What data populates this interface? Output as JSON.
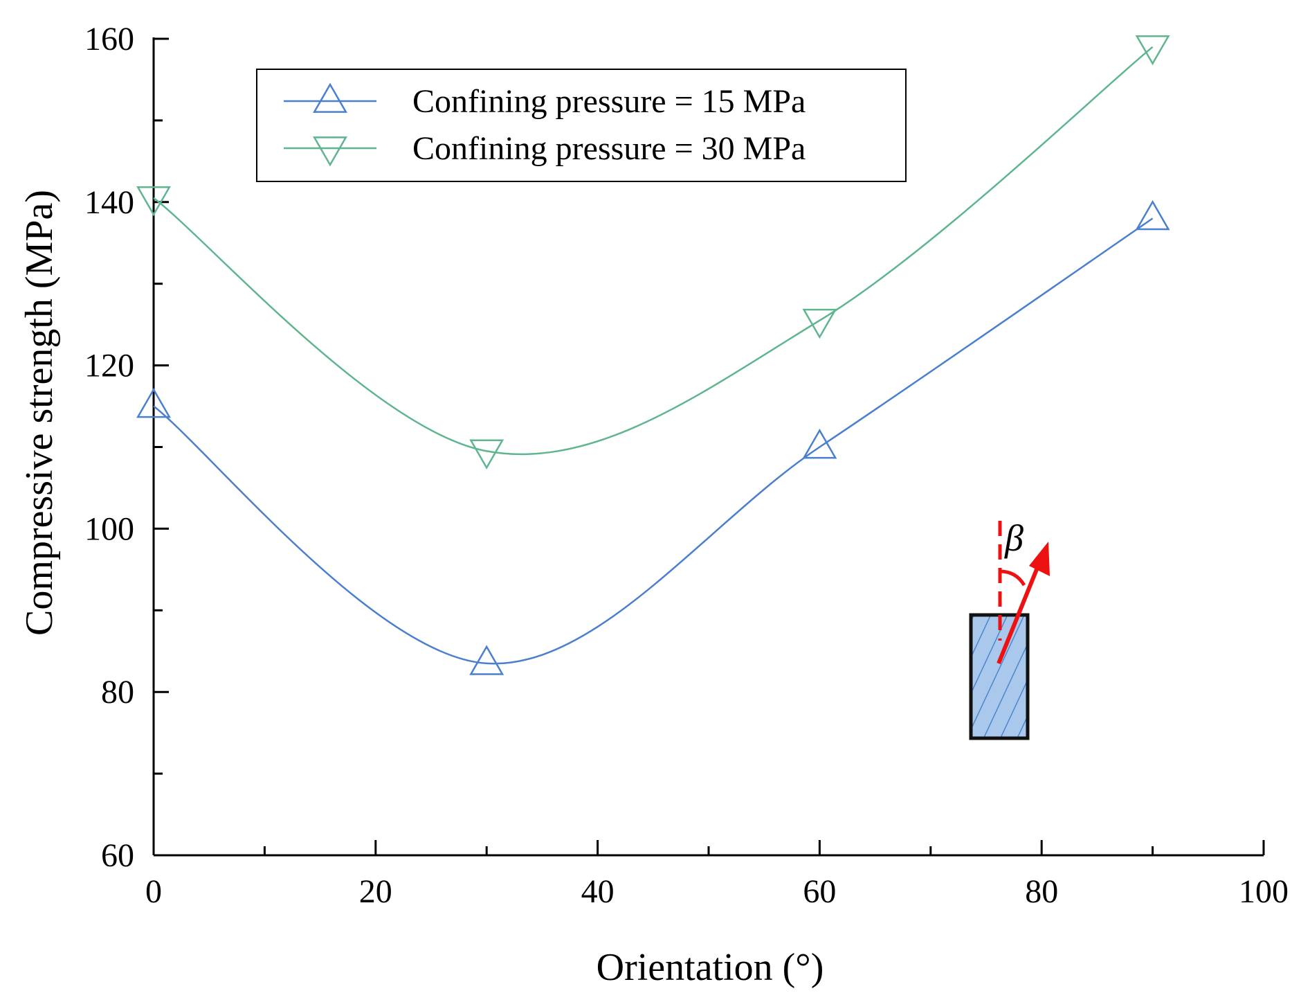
{
  "chart_data": {
    "type": "line",
    "title": "",
    "xlabel": "Orientation (°)",
    "ylabel": "Compressive strength (MPa)",
    "xlim": [
      0,
      100
    ],
    "ylim": [
      60,
      160
    ],
    "xticks": [
      0,
      20,
      40,
      60,
      80,
      100
    ],
    "yticks": [
      60,
      80,
      100,
      120,
      140,
      160
    ],
    "grid": false,
    "legend_position": "top-left",
    "x": [
      0,
      30,
      60,
      90
    ],
    "series": [
      {
        "name": "Confining pressure = 15 MPa",
        "values": [
          115,
          83.5,
          110,
          138
        ],
        "color": "#4a7fd0",
        "marker": "triangle-up"
      },
      {
        "name": "Confining pressure = 30 MPa",
        "values": [
          140.5,
          109.5,
          125.5,
          159
        ],
        "color": "#5fb58e",
        "marker": "triangle-down"
      }
    ],
    "annotation": {
      "symbol": "β",
      "description": "specimen orientation angle"
    }
  },
  "colors": {
    "axis": "#000000",
    "arrow": "#ee1111",
    "specimen_fill": "#aac8ec",
    "hatch": "#4a86d0"
  }
}
